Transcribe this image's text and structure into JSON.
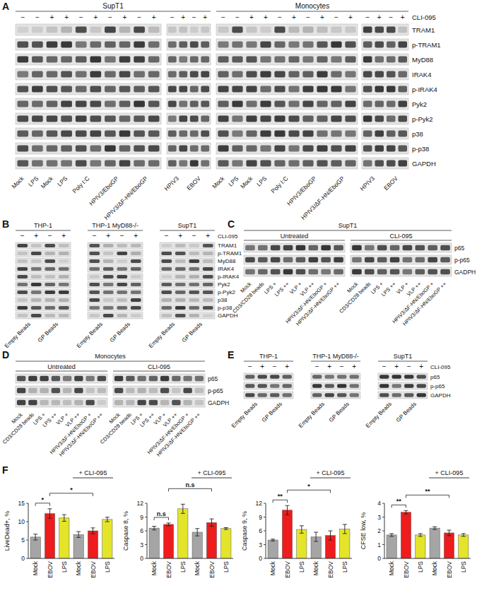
{
  "blot_panels": [
    {
      "letter": "A",
      "treatment": "CLI-095",
      "row_labels": [
        "TRAM1",
        "p-TRAM1",
        "MyD88",
        "IRAK4",
        "p-IRAK4",
        "Pyk2",
        "p-Pyk2",
        "p38",
        "p-p38",
        "GAPDH"
      ],
      "blots": [
        {
          "title": "SupT1",
          "groups": [
            {
              "signs": [
                "−",
                "−",
                "+",
                "+",
                "−",
                "+",
                "−",
                "+",
                "−",
                "+"
              ],
              "lane_labels": [
                {
                  "text": "Mock",
                  "lanes": 1
                },
                {
                  "text": "LPS",
                  "lanes": 1
                },
                {
                  "text": "Mock",
                  "lanes": 1
                },
                {
                  "text": "LPS",
                  "lanes": 1
                },
                {
                  "text": "Poly I:C",
                  "lanes": 2
                },
                {
                  "text": "HPIV3/EboGP",
                  "lanes": 2
                },
                {
                  "text": "HPIV3/ΔF-HN/EboGP",
                  "lanes": 2
                }
              ]
            },
            {
              "signs": [
                "−",
                "+",
                "−",
                "+"
              ],
              "lane_labels": [
                {
                  "text": "HPIV3",
                  "lanes": 2
                },
                {
                  "text": "EBOV",
                  "lanes": 2
                }
              ]
            }
          ]
        },
        {
          "title": "Monocytes",
          "groups": [
            {
              "signs": [
                "−",
                "−",
                "+",
                "+",
                "−",
                "+",
                "−",
                "+",
                "−",
                "+"
              ],
              "lane_labels": [
                {
                  "text": "Mock",
                  "lanes": 1
                },
                {
                  "text": "LPS",
                  "lanes": 1
                },
                {
                  "text": "Mock",
                  "lanes": 1
                },
                {
                  "text": "LPS",
                  "lanes": 1
                },
                {
                  "text": "Poly I:C",
                  "lanes": 2
                },
                {
                  "text": "HPIV3/EboGP",
                  "lanes": 2
                },
                {
                  "text": "HPIV3/ΔF-HN/EboGP",
                  "lanes": 2
                }
              ]
            },
            {
              "signs": [
                "−",
                "+",
                "−",
                "+"
              ],
              "lane_labels": [
                {
                  "text": "HPIV3",
                  "lanes": 2
                },
                {
                  "text": "EBOV",
                  "lanes": 2
                }
              ]
            }
          ]
        }
      ]
    },
    {
      "letter": "B",
      "treatment": "CLI-095",
      "row_labels": [
        "TRAM1",
        "p-TRAM1",
        "MyD88",
        "IRAK4",
        "p-IRAK4",
        "Pyk2",
        "p-Pyk2",
        "p38",
        "p-p38",
        "GAPDH"
      ],
      "blots": [
        {
          "title": "THP-1",
          "groups": [
            {
              "signs": [
                "−",
                "+",
                "−",
                "+"
              ],
              "lane_labels": [
                {
                  "text": "Empty Beads",
                  "lanes": 2
                },
                {
                  "text": "GP Beads",
                  "lanes": 2
                }
              ]
            }
          ]
        },
        {
          "title": "THP-1 MyD88-/-",
          "groups": [
            {
              "signs": [
                "−",
                "+",
                "−",
                "+"
              ],
              "lane_labels": [
                {
                  "text": "Empty Beads",
                  "lanes": 2
                },
                {
                  "text": "GP Beads",
                  "lanes": 2
                }
              ]
            }
          ]
        },
        {
          "title": "SupT1",
          "groups": [
            {
              "signs": [
                "−",
                "+",
                "−",
                "+"
              ],
              "lane_labels": [
                {
                  "text": "Empty Beads",
                  "lanes": 2
                },
                {
                  "text": "GP Beads",
                  "lanes": 2
                }
              ]
            }
          ]
        }
      ]
    },
    {
      "letter": "C",
      "row_labels": [
        "p65",
        "p-p65",
        "GADPH"
      ],
      "blots": [
        {
          "title": "SupT1",
          "groups": [
            {
              "header": "Untreated",
              "lane_labels": [
                {
                  "text": "Mock",
                  "lanes": 1
                },
                {
                  "text": "CD3/CD28 beads",
                  "lanes": 1
                },
                {
                  "text": "LPS +",
                  "lanes": 1
                },
                {
                  "text": "LPS ++",
                  "lanes": 1
                },
                {
                  "text": "VLP +",
                  "lanes": 1
                },
                {
                  "text": "VLP ++",
                  "lanes": 1
                },
                {
                  "text": "HPIV3/ΔF-HN/EboGP +",
                  "lanes": 1
                },
                {
                  "text": "HPIV3/ΔF-HN/EboGP ++",
                  "lanes": 1
                }
              ]
            },
            {
              "header": "CLI-095",
              "lane_labels": [
                {
                  "text": "Mock",
                  "lanes": 1
                },
                {
                  "text": "CD3/CD28 beads",
                  "lanes": 1
                },
                {
                  "text": "LPS +",
                  "lanes": 1
                },
                {
                  "text": "LPS ++",
                  "lanes": 1
                },
                {
                  "text": "VLP +",
                  "lanes": 1
                },
                {
                  "text": "VLP ++",
                  "lanes": 1
                },
                {
                  "text": "HPIV3/ΔF-HN/EboGP +",
                  "lanes": 1
                },
                {
                  "text": "HPIV3/ΔF-HN/EboGP ++",
                  "lanes": 1
                }
              ]
            }
          ]
        }
      ]
    },
    {
      "letter": "D",
      "row_labels": [
        "p65",
        "p-p65",
        "GADPH"
      ],
      "blots": [
        {
          "title": "Monocytes",
          "groups": [
            {
              "header": "Untreated",
              "lane_labels": [
                {
                  "text": "Mock",
                  "lanes": 1
                },
                {
                  "text": "CD3/CD28 beads",
                  "lanes": 1
                },
                {
                  "text": "LPS +",
                  "lanes": 1
                },
                {
                  "text": "LPS ++",
                  "lanes": 1
                },
                {
                  "text": "VLP +",
                  "lanes": 1
                },
                {
                  "text": "VLP ++",
                  "lanes": 1
                },
                {
                  "text": "HPIV3/ΔF-HN/EboGP +",
                  "lanes": 1
                },
                {
                  "text": "HPIV3/ΔF-HN/EboGP ++",
                  "lanes": 1
                }
              ]
            },
            {
              "header": "CLI-095",
              "lane_labels": [
                {
                  "text": "Mock",
                  "lanes": 1
                },
                {
                  "text": "CD3/CD28 beads",
                  "lanes": 1
                },
                {
                  "text": "LPS +",
                  "lanes": 1
                },
                {
                  "text": "LPS ++",
                  "lanes": 1
                },
                {
                  "text": "VLP +",
                  "lanes": 1
                },
                {
                  "text": "VLP ++",
                  "lanes": 1
                },
                {
                  "text": "HPIV3/ΔF-HN/EboGP +",
                  "lanes": 1
                },
                {
                  "text": "HPIV3/ΔF-HN/EboGP ++",
                  "lanes": 1
                }
              ]
            }
          ]
        }
      ]
    },
    {
      "letter": "E",
      "treatment": "CLI-095",
      "row_labels": [
        "p65",
        "p-p65",
        "GAPDH"
      ],
      "blots": [
        {
          "title": "THP-1",
          "groups": [
            {
              "signs": [
                "−",
                "+",
                "−",
                "+"
              ],
              "lane_labels": [
                {
                  "text": "Empty Beads",
                  "lanes": 2
                },
                {
                  "text": "GP Beads",
                  "lanes": 2
                }
              ]
            }
          ]
        },
        {
          "title": "THP-1 MyD88-/-",
          "groups": [
            {
              "signs": [
                "−",
                "+",
                "−",
                "+"
              ],
              "lane_labels": [
                {
                  "text": "Empty Beads",
                  "lanes": 2
                },
                {
                  "text": "GP Beads",
                  "lanes": 2
                }
              ]
            }
          ]
        },
        {
          "title": "SupT1",
          "groups": [
            {
              "signs": [
                "−",
                "+",
                "−",
                "+"
              ],
              "lane_labels": [
                {
                  "text": "Empty Beads",
                  "lanes": 2
                },
                {
                  "text": "GP Beads",
                  "lanes": 2
                }
              ]
            }
          ]
        }
      ]
    }
  ],
  "chart_panel_letter": "F",
  "chart_data": [
    {
      "type": "bar",
      "y_label": "LiveDead+, %",
      "categories": [
        "Mock",
        "EBOV",
        "LPS",
        "Mock",
        "EBOV",
        "LPS"
      ],
      "values": [
        5.8,
        12.2,
        11,
        6.5,
        7.5,
        10.6
      ],
      "errors": [
        0.8,
        1.3,
        0.9,
        0.8,
        0.8,
        0.6
      ],
      "colors": [
        "#a5a5a5",
        "#ee1c1c",
        "#e4e42a",
        "#a5a5a5",
        "#ee1c1c",
        "#e4e42a"
      ],
      "ylim": [
        0,
        15
      ],
      "yticks": [
        0,
        5,
        10,
        15
      ],
      "annotations": [
        {
          "text": "*",
          "from": 0,
          "to": 1
        },
        {
          "text": "*",
          "from": 1,
          "to": 4
        }
      ],
      "group_label": {
        "text": "+ CLI-095",
        "from": 3,
        "to": 5
      }
    },
    {
      "type": "bar",
      "y_label": "Caspase 8, %",
      "categories": [
        "Mock",
        "EBOV",
        "LPS",
        "Mock",
        "EBOV",
        "LPS"
      ],
      "values": [
        6.6,
        7.4,
        10.8,
        5.7,
        7.8,
        6.5
      ],
      "errors": [
        0.4,
        0.3,
        1.0,
        0.8,
        0.8,
        0.2
      ],
      "colors": [
        "#a5a5a5",
        "#ee1c1c",
        "#e4e42a",
        "#a5a5a5",
        "#ee1c1c",
        "#e4e42a"
      ],
      "ylim": [
        0,
        12
      ],
      "yticks": [
        0,
        3,
        6,
        9,
        12
      ],
      "annotations": [
        {
          "text": "n.s",
          "from": 0,
          "to": 1
        },
        {
          "text": "n.s",
          "from": 1,
          "to": 4
        }
      ],
      "group_label": {
        "text": "+ CLI-095",
        "from": 3,
        "to": 5
      }
    },
    {
      "type": "bar",
      "y_label": "Caspase 9, %",
      "categories": [
        "Mock",
        "EBOV",
        "LPS",
        "Mock",
        "EBOV",
        "LPS"
      ],
      "values": [
        4.0,
        10.5,
        6.3,
        4.7,
        5.0,
        6.4
      ],
      "errors": [
        0.2,
        1.0,
        0.8,
        1.0,
        1.0,
        1.0
      ],
      "colors": [
        "#a5a5a5",
        "#ee1c1c",
        "#e4e42a",
        "#a5a5a5",
        "#ee1c1c",
        "#e4e42a"
      ],
      "ylim": [
        0,
        12
      ],
      "yticks": [
        0,
        3,
        6,
        9,
        12
      ],
      "annotations": [
        {
          "text": "**",
          "from": 0,
          "to": 1
        },
        {
          "text": "*",
          "from": 1,
          "to": 4
        }
      ],
      "group_label": {
        "text": "+ CLI-095",
        "from": 3,
        "to": 5
      }
    },
    {
      "type": "bar",
      "y_label": "CFSE low, %",
      "categories": [
        "Mock",
        "EBOV",
        "LPS",
        "Mock",
        "EBOV",
        "LPS"
      ],
      "values": [
        1.7,
        3.35,
        1.7,
        2.2,
        1.85,
        1.7
      ],
      "errors": [
        0.1,
        0.12,
        0.1,
        0.1,
        0.2,
        0.1
      ],
      "colors": [
        "#a5a5a5",
        "#ee1c1c",
        "#e4e42a",
        "#a5a5a5",
        "#ee1c1c",
        "#e4e42a"
      ],
      "ylim": [
        0,
        4
      ],
      "yticks": [
        0,
        1,
        2,
        3,
        4
      ],
      "annotations": [
        {
          "text": "**",
          "from": 0,
          "to": 1
        },
        {
          "text": "**",
          "from": 1,
          "to": 4
        }
      ],
      "group_label": {
        "text": "+ CLI-095",
        "from": 3,
        "to": 5
      }
    }
  ]
}
